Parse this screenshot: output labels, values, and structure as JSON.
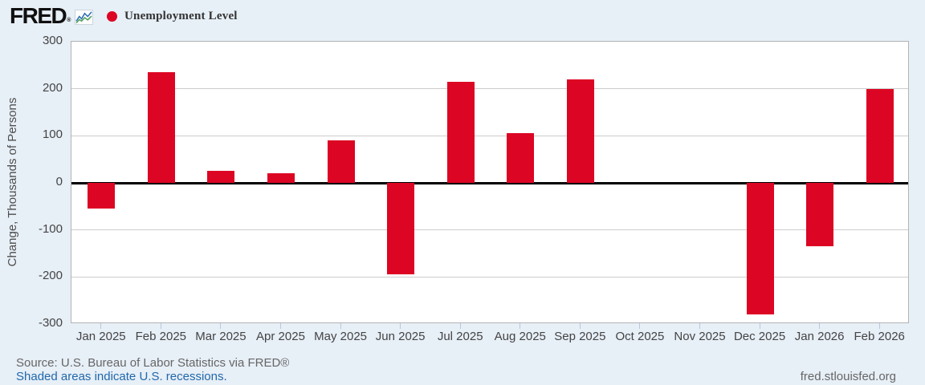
{
  "header": {
    "logo_text": "FRED",
    "logo_reg": "®",
    "legend": {
      "label": "Unemployment Level",
      "dot_color": "#dc0523"
    }
  },
  "chart_data": {
    "type": "bar",
    "title": "Unemployment Level",
    "ylabel": "Change, Thousands of Persons",
    "xlabel": "",
    "ylim": [
      -300,
      300
    ],
    "y_ticks": [
      300,
      200,
      100,
      0,
      -100,
      -200,
      -300
    ],
    "categories": [
      "Jan 2025",
      "Feb 2025",
      "Mar 2025",
      "Apr 2025",
      "May 2025",
      "Jun 2025",
      "Jul 2025",
      "Aug 2025",
      "Sep 2025",
      "Oct 2025",
      "Nov 2025",
      "Dec 2025",
      "Jan 2026",
      "Feb 2026"
    ],
    "values": [
      -55,
      235,
      25,
      20,
      90,
      -195,
      215,
      105,
      220,
      null,
      null,
      -280,
      -135,
      200
    ],
    "bar_color": "#dc0523",
    "grid": true,
    "gridline_color": "#cccccc",
    "zero_line_color": "#000000",
    "plot_background": "#ffffff",
    "page_background": "#e7eff7",
    "legend_position": "top-left"
  },
  "footer": {
    "source": "Source: U.S. Bureau of Labor Statistics via FRED®",
    "recessions_note": "Shaded areas indicate U.S. recessions.",
    "site": "fred.stlouisfed.org"
  }
}
